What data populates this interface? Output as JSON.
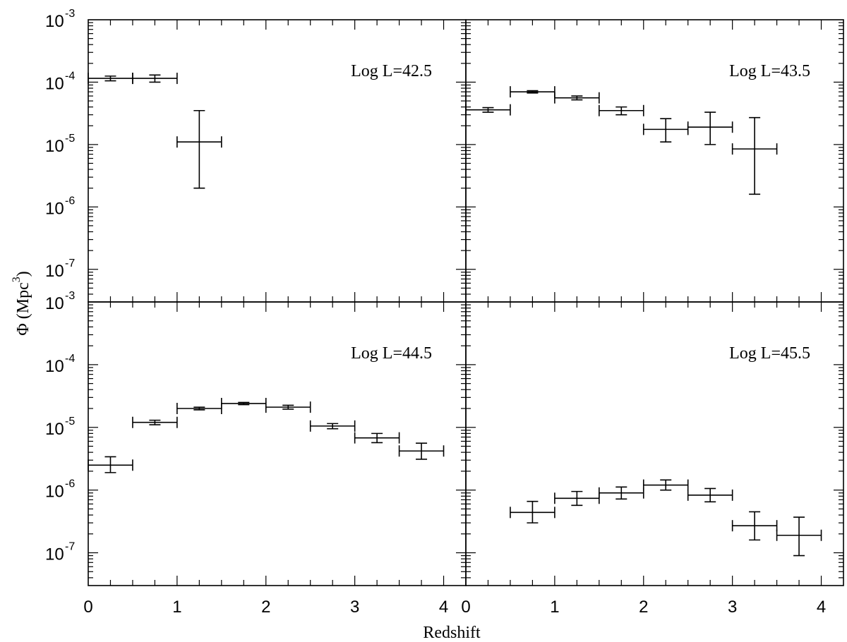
{
  "figure": {
    "ylabel_main": "Φ (Mpc",
    "ylabel_sup": "3",
    "ylabel_close": ")",
    "xlabel": "Redshift"
  },
  "chart_data": [
    {
      "type": "scatter",
      "label": "Log L=42.5",
      "xlim": [
        0,
        4.25
      ],
      "ylim": [
        3e-08,
        0.001
      ],
      "yscale": "log",
      "points": [
        {
          "x": 0.25,
          "x_lo": 0.0,
          "x_hi": 0.5,
          "y": 0.000115,
          "y_lo": 0.000105,
          "y_hi": 0.000125
        },
        {
          "x": 0.75,
          "x_lo": 0.5,
          "x_hi": 1.0,
          "y": 0.000115,
          "y_lo": 0.0001,
          "y_hi": 0.00013
        },
        {
          "x": 1.25,
          "x_lo": 1.0,
          "x_hi": 1.5,
          "y": 1.1e-05,
          "y_lo": 2e-06,
          "y_hi": 3.5e-05
        }
      ]
    },
    {
      "type": "scatter",
      "label": "Log L=43.5",
      "xlim": [
        0,
        4.25
      ],
      "ylim": [
        3e-08,
        0.001
      ],
      "yscale": "log",
      "points": [
        {
          "x": 0.25,
          "x_lo": 0.0,
          "x_hi": 0.5,
          "y": 3.6e-05,
          "y_lo": 3.3e-05,
          "y_hi": 3.9e-05
        },
        {
          "x": 0.75,
          "x_lo": 0.5,
          "x_hi": 1.0,
          "y": 7e-05,
          "y_lo": 6.7e-05,
          "y_hi": 7.3e-05
        },
        {
          "x": 1.25,
          "x_lo": 1.0,
          "x_hi": 1.5,
          "y": 5.6e-05,
          "y_lo": 5.2e-05,
          "y_hi": 6e-05
        },
        {
          "x": 1.75,
          "x_lo": 1.5,
          "x_hi": 2.0,
          "y": 3.5e-05,
          "y_lo": 3e-05,
          "y_hi": 4e-05
        },
        {
          "x": 2.25,
          "x_lo": 2.0,
          "x_hi": 2.5,
          "y": 1.75e-05,
          "y_lo": 1.1e-05,
          "y_hi": 2.6e-05
        },
        {
          "x": 2.75,
          "x_lo": 2.5,
          "x_hi": 3.0,
          "y": 1.9e-05,
          "y_lo": 1e-05,
          "y_hi": 3.3e-05
        },
        {
          "x": 3.25,
          "x_lo": 3.0,
          "x_hi": 3.5,
          "y": 8.5e-06,
          "y_lo": 1.6e-06,
          "y_hi": 2.7e-05
        }
      ]
    },
    {
      "type": "scatter",
      "label": "Log L=44.5",
      "xlim": [
        0,
        4.25
      ],
      "ylim": [
        3e-08,
        0.001
      ],
      "yscale": "log",
      "points": [
        {
          "x": 0.25,
          "x_lo": 0.0,
          "x_hi": 0.5,
          "y": 2.5e-06,
          "y_lo": 1.9e-06,
          "y_hi": 3.4e-06
        },
        {
          "x": 0.75,
          "x_lo": 0.5,
          "x_hi": 1.0,
          "y": 1.2e-05,
          "y_lo": 1.1e-05,
          "y_hi": 1.3e-05
        },
        {
          "x": 1.25,
          "x_lo": 1.0,
          "x_hi": 1.5,
          "y": 2e-05,
          "y_lo": 1.9e-05,
          "y_hi": 2.1e-05
        },
        {
          "x": 1.75,
          "x_lo": 1.5,
          "x_hi": 2.0,
          "y": 2.4e-05,
          "y_lo": 2.3e-05,
          "y_hi": 2.5e-05
        },
        {
          "x": 2.25,
          "x_lo": 2.0,
          "x_hi": 2.5,
          "y": 2.1e-05,
          "y_lo": 1.95e-05,
          "y_hi": 2.25e-05
        },
        {
          "x": 2.75,
          "x_lo": 2.5,
          "x_hi": 3.0,
          "y": 1.05e-05,
          "y_lo": 9.5e-06,
          "y_hi": 1.15e-05
        },
        {
          "x": 3.25,
          "x_lo": 3.0,
          "x_hi": 3.5,
          "y": 6.8e-06,
          "y_lo": 5.7e-06,
          "y_hi": 8e-06
        },
        {
          "x": 3.75,
          "x_lo": 3.5,
          "x_hi": 4.0,
          "y": 4.2e-06,
          "y_lo": 3.1e-06,
          "y_hi": 5.6e-06
        }
      ]
    },
    {
      "type": "scatter",
      "label": "Log L=45.5",
      "xlim": [
        0,
        4.25
      ],
      "ylim": [
        3e-08,
        0.001
      ],
      "yscale": "log",
      "points": [
        {
          "x": 0.75,
          "x_lo": 0.5,
          "x_hi": 1.0,
          "y": 4.4e-07,
          "y_lo": 3e-07,
          "y_hi": 6.6e-07
        },
        {
          "x": 1.25,
          "x_lo": 1.0,
          "x_hi": 1.5,
          "y": 7.4e-07,
          "y_lo": 5.7e-07,
          "y_hi": 9.5e-07
        },
        {
          "x": 1.75,
          "x_lo": 1.5,
          "x_hi": 2.0,
          "y": 9e-07,
          "y_lo": 7.2e-07,
          "y_hi": 1.12e-06
        },
        {
          "x": 2.25,
          "x_lo": 2.0,
          "x_hi": 2.5,
          "y": 1.2e-06,
          "y_lo": 1e-06,
          "y_hi": 1.45e-06
        },
        {
          "x": 2.75,
          "x_lo": 2.5,
          "x_hi": 3.0,
          "y": 8.3e-07,
          "y_lo": 6.5e-07,
          "y_hi": 1.06e-06
        },
        {
          "x": 3.25,
          "x_lo": 3.0,
          "x_hi": 3.5,
          "y": 2.7e-07,
          "y_lo": 1.6e-07,
          "y_hi": 4.5e-07
        },
        {
          "x": 3.75,
          "x_lo": 3.5,
          "x_hi": 4.0,
          "y": 1.9e-07,
          "y_lo": 9e-08,
          "y_hi": 3.7e-07
        }
      ]
    }
  ],
  "axes": {
    "x_ticks": [
      "0",
      "1",
      "2",
      "3",
      "4"
    ],
    "x_tick_values": [
      0,
      1,
      2,
      3,
      4
    ],
    "y_tick_exponents": [
      "-3",
      "-4",
      "-5",
      "-6",
      "-7"
    ],
    "y_tick_values": [
      -3,
      -4,
      -5,
      -6,
      -7
    ]
  }
}
